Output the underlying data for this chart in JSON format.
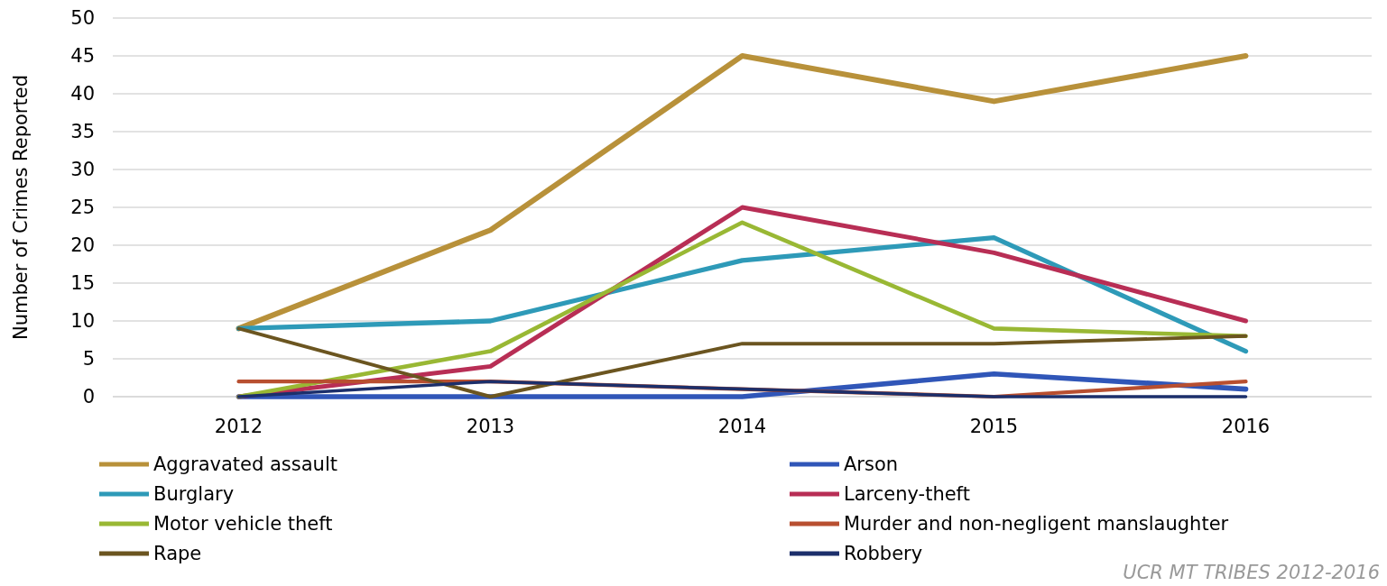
{
  "chart_data": {
    "type": "line",
    "ylabel": "Number of Crimes Reported",
    "categories": [
      "2012",
      "2013",
      "2014",
      "2015",
      "2016"
    ],
    "ylim": [
      0,
      50
    ],
    "yticks": [
      0,
      5,
      10,
      15,
      20,
      25,
      30,
      35,
      40,
      45,
      50
    ],
    "grid": "y",
    "legend": "bottom",
    "line_style": "solid",
    "marker": "none",
    "annotations": [
      "UCR MT TRIBES 2012-2016"
    ],
    "series": [
      {
        "name": "Aggravated assault",
        "color": "#b8913a",
        "values": [
          9,
          22,
          45,
          39,
          45
        ]
      },
      {
        "name": "Arson",
        "color": "#3056b8",
        "values": [
          0,
          0,
          0,
          3,
          1
        ]
      },
      {
        "name": "Burglary",
        "color": "#2e9ab8",
        "values": [
          9,
          10,
          18,
          21,
          6
        ]
      },
      {
        "name": "Larceny-theft",
        "color": "#b82e55",
        "values": [
          0,
          4,
          25,
          19,
          10
        ]
      },
      {
        "name": "Motor vehicle theft",
        "color": "#99b834",
        "values": [
          0,
          6,
          23,
          9,
          8
        ]
      },
      {
        "name": "Murder and non-negligent manslaughter",
        "color": "#b84f30",
        "values": [
          2,
          2,
          1,
          0,
          2
        ]
      },
      {
        "name": "Rape",
        "color": "#6b5520",
        "values": [
          9,
          0,
          7,
          7,
          8
        ]
      },
      {
        "name": "Robbery",
        "color": "#1c2f6b",
        "values": [
          0,
          2,
          1,
          0,
          0
        ]
      }
    ]
  }
}
